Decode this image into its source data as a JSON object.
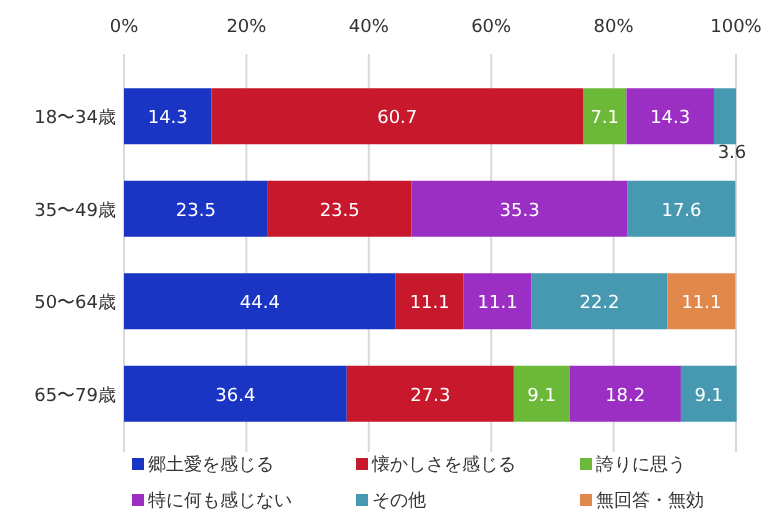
{
  "chart_data": {
    "type": "bar",
    "orientation": "horizontal",
    "stacked": true,
    "categories": [
      "18〜34歳",
      "35〜49歳",
      "50〜64歳",
      "65〜79歳"
    ],
    "series": [
      {
        "name": "郷土愛を感じる",
        "color": "#1a35c4",
        "values": [
          14.3,
          23.5,
          44.4,
          36.4
        ]
      },
      {
        "name": "懐かしさを感じる",
        "color": "#c8182c",
        "values": [
          60.7,
          23.5,
          11.1,
          27.3
        ]
      },
      {
        "name": "誇りに思う",
        "color": "#6cb93a",
        "values": [
          7.1,
          null,
          null,
          9.1
        ]
      },
      {
        "name": "特に何も感じない",
        "color": "#9b2fc4",
        "values": [
          14.3,
          35.3,
          11.1,
          18.2
        ]
      },
      {
        "name": "その他",
        "color": "#4699b0",
        "values": [
          3.6,
          17.6,
          22.2,
          9.1
        ]
      },
      {
        "name": "無回答・無効",
        "color": "#e0894a",
        "values": [
          null,
          null,
          11.1,
          null
        ]
      }
    ],
    "xlim": [
      0,
      100
    ],
    "xticks": [
      {
        "value": 0,
        "label": "0%"
      },
      {
        "value": 20,
        "label": "20%"
      },
      {
        "value": 40,
        "label": "40%"
      },
      {
        "value": 60,
        "label": "60%"
      },
      {
        "value": 80,
        "label": "80%"
      },
      {
        "value": 100,
        "label": "100%"
      }
    ],
    "grid": "x",
    "legend": "bottom",
    "data_labels": true
  }
}
